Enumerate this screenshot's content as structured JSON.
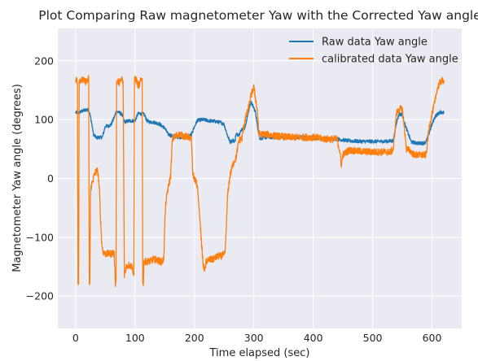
{
  "chart_data": {
    "type": "line",
    "title": "Plot Comparing Raw magnetometer Yaw with the Corrected Yaw angle",
    "xlabel": "Time elapsed (sec)",
    "ylabel": "Magnetometer Yaw angle (degrees)",
    "xlim": [
      -30,
      650
    ],
    "ylim": [
      -255,
      255
    ],
    "xticks": [
      0,
      100,
      200,
      300,
      400,
      500,
      600
    ],
    "yticks": [
      -200,
      -100,
      0,
      100,
      200
    ],
    "xtick_labels": [
      "0",
      "100",
      "200",
      "300",
      "400",
      "500",
      "600"
    ],
    "ytick_labels": [
      "−200",
      "−100",
      "0",
      "100",
      "200"
    ],
    "grid": true,
    "legend_position": "top-right",
    "colors": {
      "plot_bg": "#eaeaf2",
      "grid": "#ffffff",
      "raw": "#1f77b4",
      "calibrated": "#ff7f0e"
    },
    "series": [
      {
        "name": "Raw data Yaw angle",
        "color": "#1f77b4",
        "noise": 3,
        "points": [
          [
            0,
            112
          ],
          [
            5,
            112
          ],
          [
            10,
            114
          ],
          [
            15,
            116
          ],
          [
            20,
            117
          ],
          [
            23,
            114
          ],
          [
            26,
            100
          ],
          [
            30,
            75
          ],
          [
            35,
            69
          ],
          [
            40,
            70
          ],
          [
            45,
            70
          ],
          [
            50,
            89
          ],
          [
            55,
            89
          ],
          [
            60,
            92
          ],
          [
            65,
            104
          ],
          [
            68,
            113
          ],
          [
            72,
            113
          ],
          [
            78,
            109
          ],
          [
            82,
            96
          ],
          [
            90,
            98
          ],
          [
            100,
            98
          ],
          [
            105,
            110
          ],
          [
            112,
            110
          ],
          [
            116,
            108
          ],
          [
            120,
            98
          ],
          [
            125,
            96
          ],
          [
            130,
            96
          ],
          [
            140,
            93
          ],
          [
            150,
            86
          ],
          [
            155,
            76
          ],
          [
            160,
            73
          ],
          [
            170,
            71
          ],
          [
            180,
            70
          ],
          [
            185,
            71
          ],
          [
            190,
            71
          ],
          [
            195,
            75
          ],
          [
            200,
            88
          ],
          [
            205,
            99
          ],
          [
            215,
            100
          ],
          [
            225,
            98
          ],
          [
            235,
            97
          ],
          [
            245,
            95
          ],
          [
            250,
            92
          ],
          [
            255,
            75
          ],
          [
            260,
            62
          ],
          [
            265,
            65
          ],
          [
            268,
            63
          ],
          [
            270,
            75
          ],
          [
            275,
            75
          ],
          [
            280,
            84
          ],
          [
            285,
            85
          ],
          [
            290,
            110
          ],
          [
            295,
            130
          ],
          [
            300,
            120
          ],
          [
            303,
            112
          ],
          [
            306,
            90
          ],
          [
            310,
            68
          ],
          [
            320,
            70
          ],
          [
            340,
            70
          ],
          [
            360,
            70
          ],
          [
            380,
            70
          ],
          [
            400,
            69
          ],
          [
            420,
            68
          ],
          [
            440,
            67
          ],
          [
            460,
            64
          ],
          [
            480,
            63
          ],
          [
            500,
            63
          ],
          [
            520,
            63
          ],
          [
            535,
            64
          ],
          [
            540,
            95
          ],
          [
            545,
            110
          ],
          [
            550,
            108
          ],
          [
            555,
            90
          ],
          [
            560,
            76
          ],
          [
            565,
            62
          ],
          [
            575,
            60
          ],
          [
            585,
            60
          ],
          [
            590,
            62
          ],
          [
            595,
            77
          ],
          [
            600,
            92
          ],
          [
            605,
            105
          ],
          [
            610,
            110
          ],
          [
            615,
            113
          ],
          [
            620,
            112
          ]
        ]
      },
      {
        "name": "calibrated data Yaw angle",
        "color": "#ff7f0e",
        "noise": 6,
        "points": [
          [
            0,
            165
          ],
          [
            2,
            170
          ],
          [
            3,
            162
          ],
          [
            4,
            -175
          ],
          [
            5,
            -178
          ],
          [
            6,
            168
          ],
          [
            10,
            168
          ],
          [
            15,
            165
          ],
          [
            20,
            165
          ],
          [
            22,
            172
          ],
          [
            23,
            -178
          ],
          [
            24,
            -178
          ],
          [
            25,
            -30
          ],
          [
            26,
            -15
          ],
          [
            28,
            -6
          ],
          [
            30,
            1
          ],
          [
            33,
            10
          ],
          [
            36,
            14
          ],
          [
            38,
            8
          ],
          [
            40,
            -20
          ],
          [
            42,
            -70
          ],
          [
            44,
            -110
          ],
          [
            46,
            -125
          ],
          [
            50,
            -128
          ],
          [
            55,
            -128
          ],
          [
            60,
            -128
          ],
          [
            63,
            -125
          ],
          [
            65,
            -130
          ],
          [
            67,
            -178
          ],
          [
            68,
            -175
          ],
          [
            69,
            165
          ],
          [
            72,
            164
          ],
          [
            75,
            164
          ],
          [
            78,
            170
          ],
          [
            80,
            160
          ],
          [
            82,
            -165
          ],
          [
            85,
            -150
          ],
          [
            90,
            -147
          ],
          [
            95,
            -150
          ],
          [
            98,
            -165
          ],
          [
            99,
            168
          ],
          [
            102,
            168
          ],
          [
            105,
            158
          ],
          [
            108,
            160
          ],
          [
            110,
            168
          ],
          [
            112,
            170
          ],
          [
            113,
            -178
          ],
          [
            114,
            -178
          ],
          [
            115,
            -142
          ],
          [
            120,
            -141
          ],
          [
            125,
            -141
          ],
          [
            130,
            -138
          ],
          [
            135,
            -138
          ],
          [
            140,
            -140
          ],
          [
            145,
            -142
          ],
          [
            148,
            -138
          ],
          [
            149,
            -120
          ],
          [
            150,
            -75
          ],
          [
            152,
            -40
          ],
          [
            155,
            -20
          ],
          [
            157,
            -10
          ],
          [
            159,
            0
          ],
          [
            160,
            5
          ],
          [
            162,
            50
          ],
          [
            163,
            65
          ],
          [
            165,
            70
          ],
          [
            170,
            73
          ],
          [
            175,
            75
          ],
          [
            180,
            73
          ],
          [
            185,
            71
          ],
          [
            190,
            71
          ],
          [
            195,
            65
          ],
          [
            197,
            10
          ],
          [
            200,
            0
          ],
          [
            205,
            -12
          ],
          [
            210,
            -80
          ],
          [
            213,
            -125
          ],
          [
            215,
            -150
          ],
          [
            218,
            -155
          ],
          [
            220,
            -140
          ],
          [
            225,
            -138
          ],
          [
            230,
            -138
          ],
          [
            235,
            -135
          ],
          [
            240,
            -132
          ],
          [
            245,
            -132
          ],
          [
            248,
            -130
          ],
          [
            250,
            -132
          ],
          [
            252,
            -120
          ],
          [
            254,
            -75
          ],
          [
            256,
            -28
          ],
          [
            258,
            -10
          ],
          [
            260,
            5
          ],
          [
            265,
            25
          ],
          [
            270,
            35
          ],
          [
            275,
            65
          ],
          [
            280,
            68
          ],
          [
            285,
            100
          ],
          [
            290,
            115
          ],
          [
            295,
            140
          ],
          [
            300,
            155
          ],
          [
            303,
            135
          ],
          [
            306,
            115
          ],
          [
            308,
            80
          ],
          [
            310,
            75
          ],
          [
            320,
            75
          ],
          [
            340,
            72
          ],
          [
            360,
            70
          ],
          [
            380,
            70
          ],
          [
            400,
            70
          ],
          [
            420,
            67
          ],
          [
            440,
            67
          ],
          [
            445,
            45
          ],
          [
            447,
            22
          ],
          [
            450,
            40
          ],
          [
            455,
            44
          ],
          [
            460,
            48
          ],
          [
            480,
            46
          ],
          [
            500,
            45
          ],
          [
            520,
            45
          ],
          [
            530,
            45
          ],
          [
            535,
            50
          ],
          [
            540,
            110
          ],
          [
            545,
            118
          ],
          [
            550,
            118
          ],
          [
            555,
            70
          ],
          [
            557,
            50
          ],
          [
            562,
            48
          ],
          [
            570,
            40
          ],
          [
            580,
            40
          ],
          [
            590,
            40
          ],
          [
            595,
            85
          ],
          [
            600,
            110
          ],
          [
            605,
            130
          ],
          [
            608,
            150
          ],
          [
            612,
            160
          ],
          [
            615,
            165
          ],
          [
            620,
            167
          ]
        ]
      }
    ]
  }
}
